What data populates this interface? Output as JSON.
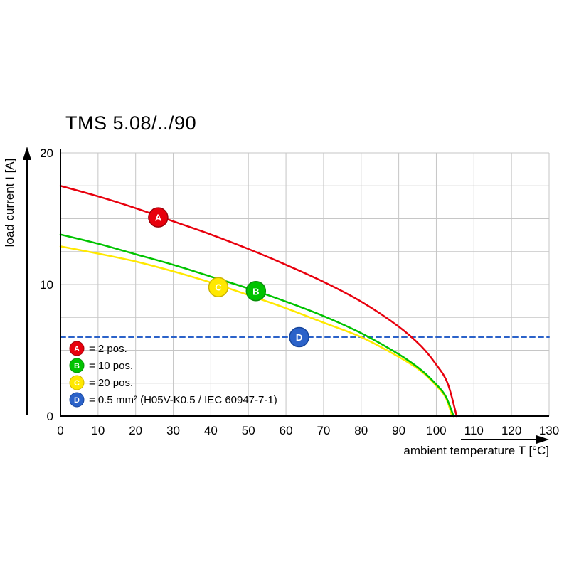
{
  "title": "TMS 5.08/../90",
  "chart_data": {
    "type": "line",
    "title": "TMS 5.08/../90",
    "xlabel": "ambient temperature T [°C]",
    "ylabel": "load current I [A]",
    "xlim": [
      0,
      130
    ],
    "ylim": [
      0,
      20
    ],
    "xticks": [
      0,
      10,
      20,
      30,
      40,
      50,
      60,
      70,
      80,
      90,
      100,
      110,
      120,
      130
    ],
    "yticks": [
      0,
      10,
      20
    ],
    "grid": {
      "x_step": 10,
      "y_step": 2.5,
      "color": "#c6c6c6",
      "on": true
    },
    "legend_position": "inside bottom-left",
    "series": [
      {
        "id": "A",
        "label": "= 2 pos.",
        "color": "#e8000d",
        "edge": "#9d0009",
        "dashed": false,
        "marker": {
          "x": 26,
          "y": 15.1
        },
        "points": [
          [
            0,
            17.5
          ],
          [
            10,
            16.7
          ],
          [
            20,
            15.8
          ],
          [
            30,
            14.8
          ],
          [
            40,
            13.8
          ],
          [
            50,
            12.7
          ],
          [
            60,
            11.5
          ],
          [
            70,
            10.2
          ],
          [
            80,
            8.7
          ],
          [
            90,
            6.8
          ],
          [
            96,
            5.3
          ],
          [
            100,
            3.9
          ],
          [
            103,
            2.5
          ],
          [
            105.4,
            0
          ]
        ]
      },
      {
        "id": "B",
        "label": "= 10 pos.",
        "color": "#00c300",
        "edge": "#0a8f0a",
        "dashed": false,
        "marker": {
          "x": 52,
          "y": 9.5
        },
        "points": [
          [
            0,
            13.8
          ],
          [
            10,
            13.1
          ],
          [
            20,
            12.3
          ],
          [
            30,
            11.5
          ],
          [
            40,
            10.6
          ],
          [
            50,
            9.7
          ],
          [
            60,
            8.7
          ],
          [
            70,
            7.6
          ],
          [
            80,
            6.3
          ],
          [
            90,
            4.7
          ],
          [
            96,
            3.5
          ],
          [
            100,
            2.4
          ],
          [
            102.5,
            1.5
          ],
          [
            104.6,
            0
          ]
        ]
      },
      {
        "id": "C",
        "label": "= 20 pos.",
        "color": "#ffe800",
        "edge": "#cdb400",
        "dashed": false,
        "marker": {
          "x": 42,
          "y": 9.8
        },
        "points": [
          [
            0,
            12.9
          ],
          [
            10,
            12.35
          ],
          [
            20,
            11.75
          ],
          [
            30,
            11.0
          ],
          [
            40,
            10.15
          ],
          [
            50,
            9.2
          ],
          [
            60,
            8.2
          ],
          [
            70,
            7.1
          ],
          [
            80,
            6.0
          ],
          [
            90,
            4.5
          ],
          [
            96,
            3.4
          ],
          [
            100,
            2.3
          ],
          [
            102.5,
            1.4
          ],
          [
            104.2,
            0
          ]
        ]
      },
      {
        "id": "D",
        "label": "= 0.5 mm² (H05V-K0.5 / IEC 60947-7-1)",
        "color": "#2b62c9",
        "edge": "#16459c",
        "dashed": true,
        "marker": {
          "x": 63.5,
          "y": 6.0
        },
        "points": [
          [
            0,
            6.0
          ],
          [
            130,
            6.0
          ]
        ]
      }
    ]
  },
  "layout_colors": {
    "axis": "#000000",
    "background": "#ffffff",
    "tick_text": "#000000"
  }
}
